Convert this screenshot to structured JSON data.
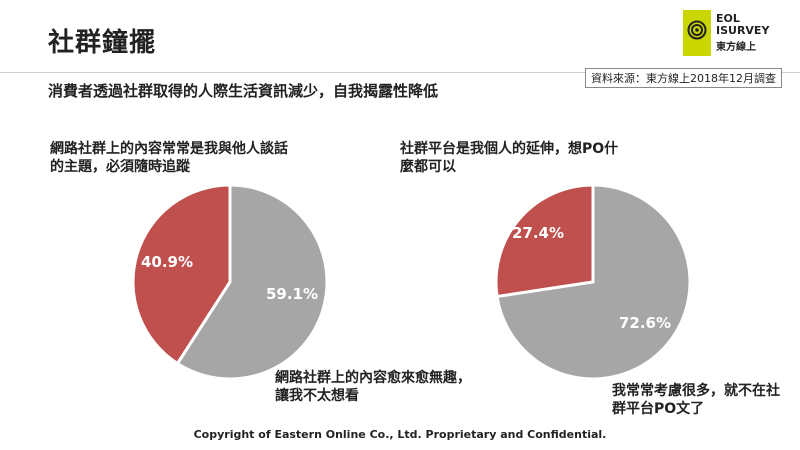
{
  "header": {
    "title": "社群鐘擺",
    "subtitle": "消費者透過社群取得的人際生活資訊減少，自我揭露性降低",
    "source": "資料來源：東方線上2018年12月調查"
  },
  "logo": {
    "line1": "EOL",
    "line2": "ISURVEY",
    "line3": "東方線上",
    "brand_color": "#c9d600",
    "icon": "eye-spiral-icon"
  },
  "footer": {
    "text": "Copyright  of Eastern Online  Co., Ltd. Proprietary and Confidential."
  },
  "colors": {
    "red": "#c0504d",
    "grey": "#a6a6a6"
  },
  "chart_data": [
    {
      "type": "pie",
      "title": "",
      "slices": [
        {
          "label": "網路社群上的內容常常是我與他人談話的主題，必須隨時追蹤",
          "value": 40.9,
          "display": "40.9%",
          "color": "#c0504d"
        },
        {
          "label": "網路社群上的內容愈來愈無趣，讓我不太想看",
          "value": 59.1,
          "display": "59.1%",
          "color": "#a6a6a6"
        }
      ]
    },
    {
      "type": "pie",
      "title": "",
      "slices": [
        {
          "label": "社群平台是我個人的延伸，想PO什麼都可以",
          "value": 27.4,
          "display": "27.4%",
          "color": "#c0504d"
        },
        {
          "label": "我常常考慮很多，就不在社群平台PO文了",
          "value": 72.6,
          "display": "72.6%",
          "color": "#a6a6a6"
        }
      ]
    }
  ]
}
